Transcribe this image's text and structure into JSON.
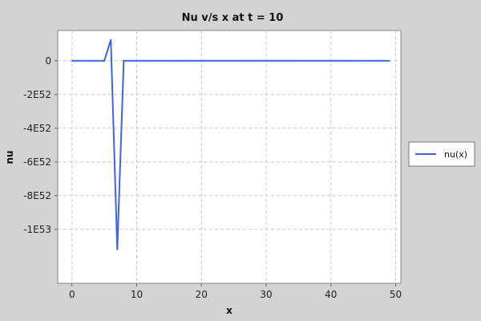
{
  "chart_data": {
    "type": "line",
    "title": "Nu v/s x at t = 10",
    "xlabel": "x",
    "ylabel": "nu",
    "xlim": [
      -2.2,
      50.8
    ],
    "ylim": [
      -1.32e+53,
      1.8e+52
    ],
    "x_ticks": [
      0,
      10,
      20,
      30,
      40,
      50
    ],
    "x_tick_labels": [
      "0",
      "10",
      "20",
      "30",
      "40",
      "50"
    ],
    "y_ticks": [
      0,
      -2e+52,
      -4e+52,
      -6e+52,
      -8e+52,
      -1e+53
    ],
    "y_tick_labels": [
      "0",
      "-2E52",
      "-4E52",
      "-6E52",
      "-8E52",
      "-1E53"
    ],
    "grid": true,
    "legend": {
      "placement": "right",
      "entries": [
        "nu(x)"
      ]
    },
    "series": [
      {
        "name": "nu(x)",
        "color": "#3d63e6",
        "x": [
          0,
          1,
          2,
          3,
          4,
          5,
          6,
          7,
          8,
          9,
          10,
          11,
          12,
          13,
          14,
          15,
          16,
          17,
          18,
          19,
          20,
          21,
          22,
          23,
          24,
          25,
          26,
          27,
          28,
          29,
          30,
          31,
          32,
          33,
          34,
          35,
          36,
          37,
          38,
          39,
          40,
          41,
          42,
          43,
          44,
          45,
          46,
          47,
          48,
          49
        ],
        "y": [
          0,
          0,
          0,
          0,
          0,
          0,
          1.25e+52,
          -1.12e+53,
          0,
          0,
          0,
          0,
          0,
          0,
          0,
          0,
          0,
          0,
          0,
          0,
          0,
          0,
          0,
          0,
          0,
          0,
          0,
          0,
          0,
          0,
          0,
          0,
          0,
          0,
          0,
          0,
          0,
          0,
          0,
          0,
          0,
          0,
          0,
          0,
          0,
          0,
          0,
          0,
          0,
          0
        ]
      }
    ]
  }
}
